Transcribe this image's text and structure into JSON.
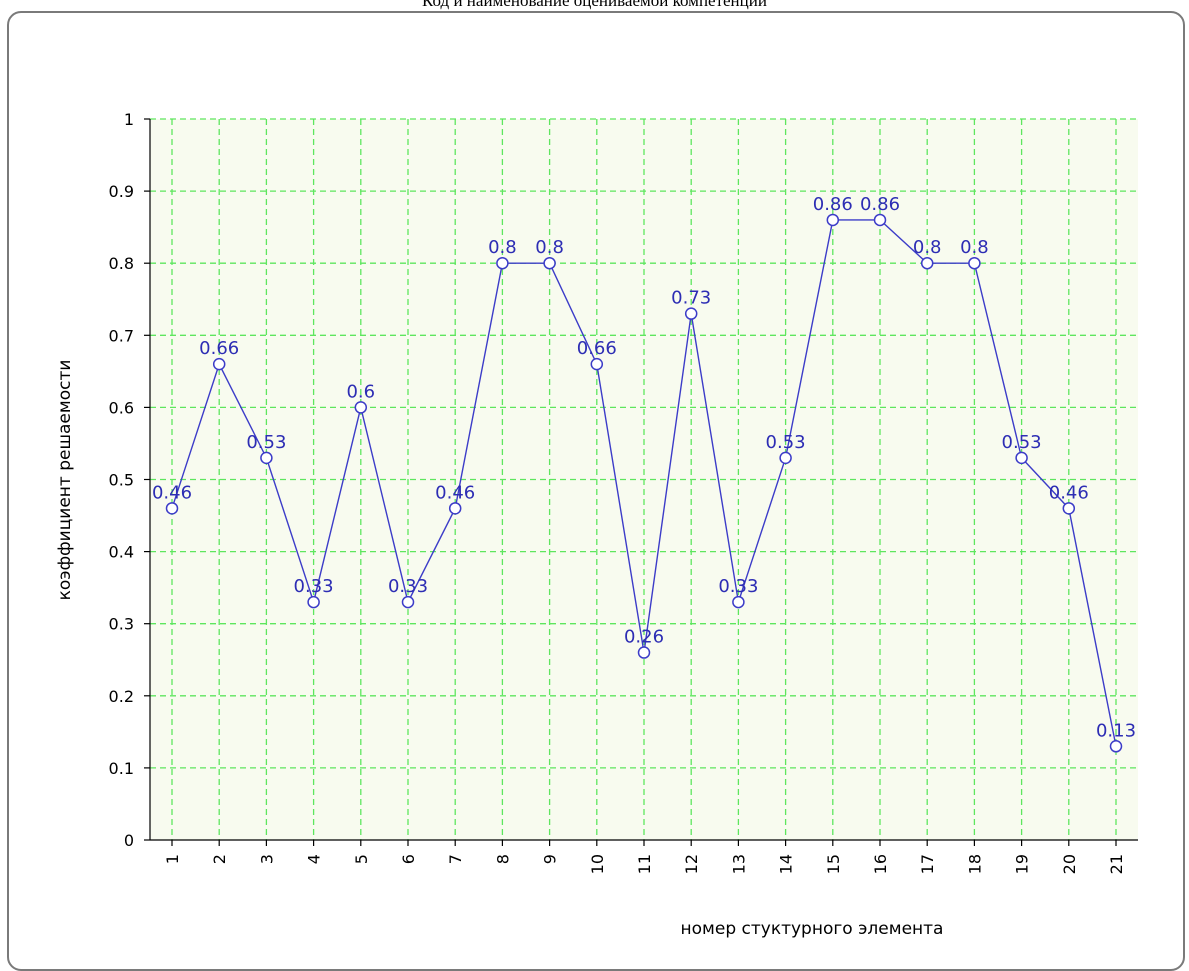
{
  "caption": "Код и наименование оцениваемой компетенции",
  "chart_data": {
    "type": "line",
    "x": [
      "1",
      "2",
      "3",
      "4",
      "5",
      "6",
      "7",
      "8",
      "9",
      "10",
      "11",
      "12",
      "13",
      "14",
      "15",
      "16",
      "17",
      "18",
      "19",
      "20",
      "21"
    ],
    "values": [
      0.46,
      0.66,
      0.53,
      0.33,
      0.6,
      0.33,
      0.46,
      0.8,
      0.8,
      0.66,
      0.26,
      0.73,
      0.33,
      0.53,
      0.86,
      0.86,
      0.8,
      0.8,
      0.53,
      0.46,
      0.13
    ],
    "data_labels": [
      "0.46",
      "0.66",
      "0.53",
      "0.33",
      "0.6",
      "0.33",
      "0.46",
      "0.8",
      "0.8",
      "0.66",
      "0.26",
      "0.73",
      "0.33",
      "0.53",
      "0.86",
      "0.86",
      "0.8",
      "0.8",
      "0.53",
      "0.46",
      "0.13"
    ],
    "xlabel": "номер стуктурного элемента",
    "ylabel": "коэффициент решаемости",
    "ylim": [
      0,
      1
    ],
    "yticks": [
      0,
      0.1,
      0.2,
      0.3,
      0.4,
      0.5,
      0.6,
      0.7,
      0.8,
      0.9,
      1
    ],
    "ytick_labels": [
      "0",
      "0.1",
      "0.2",
      "0.3",
      "0.4",
      "0.5",
      "0.6",
      "0.7",
      "0.8",
      "0.9",
      "1"
    ],
    "grid": true,
    "colors": {
      "line": "#3c3cc8",
      "labels": "#2d2db4",
      "grid": "#5ee65e",
      "plot_bg": "#f8fbef",
      "axis": "#000000"
    }
  }
}
